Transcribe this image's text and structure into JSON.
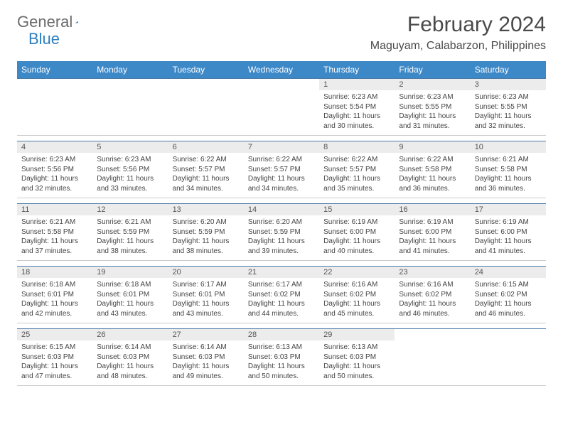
{
  "logo": {
    "text1": "General",
    "text2": "Blue"
  },
  "title": "February 2024",
  "location": "Maguyam, Calabarzon, Philippines",
  "colors": {
    "header_bg": "#3d88c7",
    "header_text": "#ffffff",
    "daynum_bg": "#ececec",
    "rule": "#4a7aa8",
    "logo_gray": "#6b6b6b",
    "logo_blue": "#2f7fbf"
  },
  "day_headers": [
    "Sunday",
    "Monday",
    "Tuesday",
    "Wednesday",
    "Thursday",
    "Friday",
    "Saturday"
  ],
  "weeks": [
    [
      null,
      null,
      null,
      null,
      {
        "n": "1",
        "sr": "6:23 AM",
        "ss": "5:54 PM",
        "dl": "11 hours and 30 minutes."
      },
      {
        "n": "2",
        "sr": "6:23 AM",
        "ss": "5:55 PM",
        "dl": "11 hours and 31 minutes."
      },
      {
        "n": "3",
        "sr": "6:23 AM",
        "ss": "5:55 PM",
        "dl": "11 hours and 32 minutes."
      }
    ],
    [
      {
        "n": "4",
        "sr": "6:23 AM",
        "ss": "5:56 PM",
        "dl": "11 hours and 32 minutes."
      },
      {
        "n": "5",
        "sr": "6:23 AM",
        "ss": "5:56 PM",
        "dl": "11 hours and 33 minutes."
      },
      {
        "n": "6",
        "sr": "6:22 AM",
        "ss": "5:57 PM",
        "dl": "11 hours and 34 minutes."
      },
      {
        "n": "7",
        "sr": "6:22 AM",
        "ss": "5:57 PM",
        "dl": "11 hours and 34 minutes."
      },
      {
        "n": "8",
        "sr": "6:22 AM",
        "ss": "5:57 PM",
        "dl": "11 hours and 35 minutes."
      },
      {
        "n": "9",
        "sr": "6:22 AM",
        "ss": "5:58 PM",
        "dl": "11 hours and 36 minutes."
      },
      {
        "n": "10",
        "sr": "6:21 AM",
        "ss": "5:58 PM",
        "dl": "11 hours and 36 minutes."
      }
    ],
    [
      {
        "n": "11",
        "sr": "6:21 AM",
        "ss": "5:58 PM",
        "dl": "11 hours and 37 minutes."
      },
      {
        "n": "12",
        "sr": "6:21 AM",
        "ss": "5:59 PM",
        "dl": "11 hours and 38 minutes."
      },
      {
        "n": "13",
        "sr": "6:20 AM",
        "ss": "5:59 PM",
        "dl": "11 hours and 38 minutes."
      },
      {
        "n": "14",
        "sr": "6:20 AM",
        "ss": "5:59 PM",
        "dl": "11 hours and 39 minutes."
      },
      {
        "n": "15",
        "sr": "6:19 AM",
        "ss": "6:00 PM",
        "dl": "11 hours and 40 minutes."
      },
      {
        "n": "16",
        "sr": "6:19 AM",
        "ss": "6:00 PM",
        "dl": "11 hours and 41 minutes."
      },
      {
        "n": "17",
        "sr": "6:19 AM",
        "ss": "6:00 PM",
        "dl": "11 hours and 41 minutes."
      }
    ],
    [
      {
        "n": "18",
        "sr": "6:18 AM",
        "ss": "6:01 PM",
        "dl": "11 hours and 42 minutes."
      },
      {
        "n": "19",
        "sr": "6:18 AM",
        "ss": "6:01 PM",
        "dl": "11 hours and 43 minutes."
      },
      {
        "n": "20",
        "sr": "6:17 AM",
        "ss": "6:01 PM",
        "dl": "11 hours and 43 minutes."
      },
      {
        "n": "21",
        "sr": "6:17 AM",
        "ss": "6:02 PM",
        "dl": "11 hours and 44 minutes."
      },
      {
        "n": "22",
        "sr": "6:16 AM",
        "ss": "6:02 PM",
        "dl": "11 hours and 45 minutes."
      },
      {
        "n": "23",
        "sr": "6:16 AM",
        "ss": "6:02 PM",
        "dl": "11 hours and 46 minutes."
      },
      {
        "n": "24",
        "sr": "6:15 AM",
        "ss": "6:02 PM",
        "dl": "11 hours and 46 minutes."
      }
    ],
    [
      {
        "n": "25",
        "sr": "6:15 AM",
        "ss": "6:03 PM",
        "dl": "11 hours and 47 minutes."
      },
      {
        "n": "26",
        "sr": "6:14 AM",
        "ss": "6:03 PM",
        "dl": "11 hours and 48 minutes."
      },
      {
        "n": "27",
        "sr": "6:14 AM",
        "ss": "6:03 PM",
        "dl": "11 hours and 49 minutes."
      },
      {
        "n": "28",
        "sr": "6:13 AM",
        "ss": "6:03 PM",
        "dl": "11 hours and 50 minutes."
      },
      {
        "n": "29",
        "sr": "6:13 AM",
        "ss": "6:03 PM",
        "dl": "11 hours and 50 minutes."
      },
      null,
      null
    ]
  ],
  "labels": {
    "sunrise": "Sunrise:",
    "sunset": "Sunset:",
    "daylight": "Daylight:"
  }
}
